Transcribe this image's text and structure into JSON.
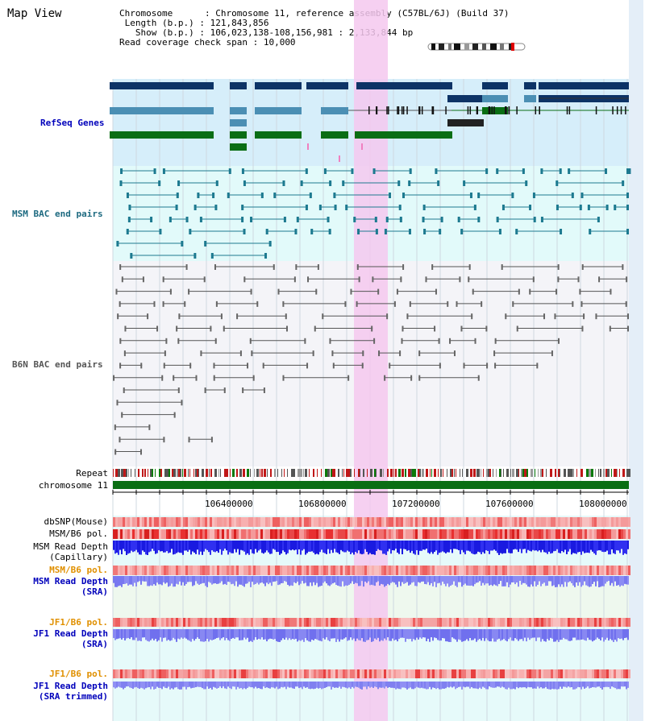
{
  "page_title": "Map View",
  "info": {
    "chromosome_key": "Chromosome",
    "chromosome_value": ": Chromosome 11, reference assembly (C57BL/6J) (Build 37)",
    "length_key": "Length (b.p.)",
    "length_value": ": 121,843,856",
    "show_key": "Show (b.p.)",
    "show_value": ": 106,023,138-108,156,981 : 2,133,844 bp",
    "read_cov_key": "Read coverage check span",
    "read_cov_value": ": 10,000"
  },
  "tracks": {
    "refseq": "RefSeq Genes",
    "msm_bac": "MSM BAC end pairs",
    "b6n_bac": "B6N BAC end pairs",
    "repeat": "Repeat",
    "chromosome": "chromosome 11",
    "dbsnp": "dbSNP(Mouse)",
    "msm_b6_pol": "MSM/B6 pol.",
    "msm_read_depth_cap_1": "MSM Read Depth",
    "msm_read_depth_cap_2": "(Capillary)",
    "msm_b6_pol_2": "MSM/B6 pol.",
    "msm_read_depth_sra_1": "MSM Read Depth",
    "msm_read_depth_sra_2": "(SRA)",
    "jf1_b6_pol": "JF1/B6 pol.",
    "jf1_read_depth_sra_1": "JF1 Read Depth",
    "jf1_read_depth_sra_2": "(SRA)",
    "jf1_b6_pol_2": "JF1/B6 pol.",
    "jf1_read_depth_trim_1": "JF1 Read Depth",
    "jf1_read_depth_trim_2": "(SRA trimmed)"
  },
  "axis_ticks": [
    "106400000",
    "106800000",
    "107200000",
    "107600000",
    "108000000"
  ],
  "colors": {
    "refseq_bg": "#d6eefa",
    "msm_bac_bg": "#e2fafa",
    "b6n_bac_bg": "#f4f4f8",
    "highlight": "#f4c8ee",
    "gene_navy": "#0d3366",
    "gene_steel": "#4b8fb4",
    "gene_green": "#0a6e14",
    "msm_bac_line": "#1d7a90",
    "b6n_line": "#555555",
    "chromosome_bar": "#0a6e14",
    "pol_pink": "#f49a9a",
    "pol_red": "#e83030",
    "depth_blue": "#2020e0",
    "depth_light": "#8080f0",
    "label_blue": "#0000bb",
    "label_orange": "#e09000",
    "label_teal": "#1d6a80"
  }
}
